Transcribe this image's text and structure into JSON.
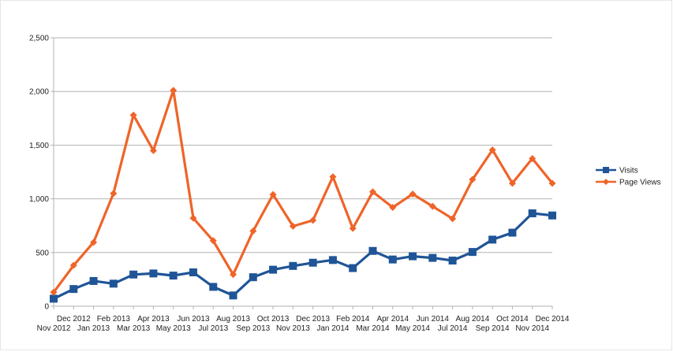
{
  "chart_data": {
    "type": "line",
    "title": "",
    "xlabel": "",
    "ylabel": "",
    "ylim": [
      0,
      2500
    ],
    "yticks": [
      0,
      500,
      1000,
      1500,
      2000,
      2500
    ],
    "ytick_labels": [
      "0",
      "500",
      "1,000",
      "1,500",
      "2,000",
      "2,500"
    ],
    "grid": true,
    "legend_position": "right",
    "categories": [
      "Nov 2012",
      "Dec 2012",
      "Jan 2013",
      "Feb 2013",
      "Mar 2013",
      "Apr 2013",
      "May 2013",
      "Jun 2013",
      "Jul 2013",
      "Aug 2013",
      "Sep 2013",
      "Oct 2013",
      "Nov 2013",
      "Dec 2013",
      "Jan 2014",
      "Feb 2014",
      "Mar 2014",
      "Apr 2014",
      "May 2014",
      "Jun 2014",
      "Jul 2014",
      "Aug 2014",
      "Sep 2014",
      "Oct 2014",
      "Nov 2014",
      "Dec 2014"
    ],
    "series": [
      {
        "name": "Visits",
        "color": "#1f5597",
        "marker": "square",
        "values": [
          70,
          160,
          235,
          210,
          295,
          305,
          285,
          315,
          180,
          100,
          270,
          340,
          375,
          405,
          430,
          355,
          515,
          435,
          465,
          450,
          425,
          505,
          620,
          685,
          865,
          845
        ]
      },
      {
        "name": "Page Views",
        "color": "#ef6429",
        "marker": "diamond",
        "values": [
          130,
          380,
          595,
          1050,
          1780,
          1450,
          2010,
          820,
          610,
          295,
          700,
          1040,
          745,
          800,
          1205,
          725,
          1065,
          920,
          1045,
          930,
          815,
          1180,
          1455,
          1145,
          1375,
          1145
        ]
      }
    ]
  }
}
